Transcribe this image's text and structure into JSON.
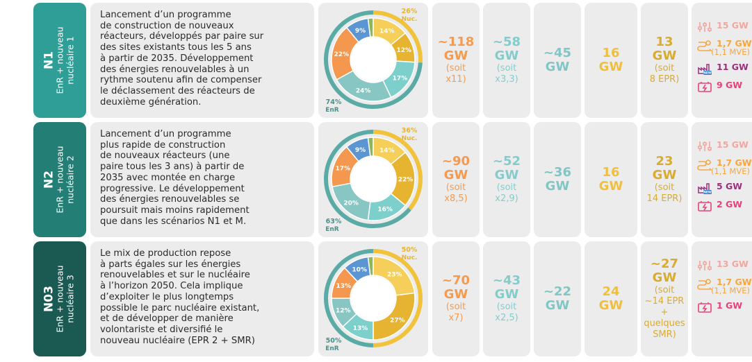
{
  "rows": [
    {
      "code": "N1",
      "sub1": "EnR + nouveau",
      "sub2": "nucléaire 1",
      "color": "#2e9e96",
      "desc": [
        "Lancement d’un programme",
        "de construction de nouveaux",
        "réacteurs, développés par paire sur",
        "des sites existants tous les 5 ans",
        "à partir de 2035. Développement",
        "des énergies renouvelables à un",
        "rythme soutenu afin de compenser",
        "le déclassement des réacteurs de",
        "deuxième génération."
      ],
      "nuc_pct": "26%",
      "nuc_word": "Nuc.",
      "enr_pct": "74%",
      "enr_word": "EnR",
      "col1": {
        "v1": "~118",
        "v2": "GW",
        "n1": "(soit",
        "n2": "x11)"
      },
      "col2": {
        "v1": "~58",
        "v2": "GW",
        "n1": "(soit",
        "n2": "x3,3)"
      },
      "col3": {
        "v1": "~45",
        "v2": "GW"
      },
      "col4": {
        "v1": "16",
        "v2": "GW"
      },
      "col5": {
        "v1": "13",
        "v2": "GW",
        "n1": "(soit",
        "n2": "8 EPR)"
      },
      "col6": [
        {
          "icon": "sliders-icon",
          "text": "15 GW",
          "note": "",
          "color": "#f2a6a0"
        },
        {
          "icon": "pump-storage-icon",
          "text": "1,7 GW",
          "note": "(1,1 MVE)",
          "color": "#f5a640"
        },
        {
          "icon": "factory-new-icon",
          "text": "11 GW",
          "note": "",
          "color": "#9c2f7c"
        },
        {
          "icon": "battery-icon",
          "text": "9 GW",
          "note": "",
          "color": "#e8407a"
        }
      ]
    },
    {
      "code": "N2",
      "sub1": "EnR + nouveau",
      "sub2": "nucléaire 2",
      "color": "#237e75",
      "desc": [
        "Lancement d’un programme",
        "plus rapide de construction",
        "de nouveaux réacteurs (une",
        "paire tous les 3 ans) à partir de",
        "2035 avec montée en charge",
        "progressive. Le développement",
        "des énergies renouvelables se",
        "poursuit mais moins rapidement",
        "que dans les scénarios N1 et M."
      ],
      "nuc_pct": "36%",
      "nuc_word": "Nuc.",
      "enr_pct": "63%",
      "enr_word": "EnR",
      "col1": {
        "v1": "~90",
        "v2": "GW",
        "n1": "(soit",
        "n2": "x8,5)"
      },
      "col2": {
        "v1": "~52",
        "v2": "GW",
        "n1": "(soit",
        "n2": "x2,9)"
      },
      "col3": {
        "v1": "~36",
        "v2": "GW"
      },
      "col4": {
        "v1": "16",
        "v2": "GW"
      },
      "col5": {
        "v1": "23",
        "v2": "GW",
        "n1": "(soit",
        "n2": "14 EPR)"
      },
      "col6": [
        {
          "icon": "sliders-icon",
          "text": "15 GW",
          "note": "",
          "color": "#f2a6a0"
        },
        {
          "icon": "pump-storage-icon",
          "text": "1,7 GW",
          "note": "(1,1 MVE)",
          "color": "#f5a640"
        },
        {
          "icon": "factory-new-icon",
          "text": "5 GW",
          "note": "",
          "color": "#9c2f7c"
        },
        {
          "icon": "battery-icon",
          "text": "2 GW",
          "note": "",
          "color": "#e8407a"
        }
      ]
    },
    {
      "code": "N03",
      "sub1": "EnR + nouveau",
      "sub2": "nucléaire 3",
      "color": "#1a5a52",
      "desc": [
        "Le mix de production repose",
        "à parts égales sur les énergies",
        "renouvelables et sur le nucléaire",
        "à l’horizon 2050. Cela implique",
        "d’exploiter le plus longtemps",
        "possible le parc nucléaire existant,",
        "et de développer de manière",
        "volontariste et diversifié le",
        "nouveau nucléaire (EPR 2 + SMR)"
      ],
      "nuc_pct": "50%",
      "nuc_word": "Nuc.",
      "enr_pct": "50%",
      "enr_word": "EnR",
      "col1": {
        "v1": "~70",
        "v2": "GW",
        "n1": "(soit",
        "n2": "x7)"
      },
      "col2": {
        "v1": "~43",
        "v2": "GW",
        "n1": "(soit",
        "n2": "x2,5)"
      },
      "col3": {
        "v1": "~22",
        "v2": "GW"
      },
      "col4": {
        "v1": "24",
        "v2": "GW"
      },
      "col5": {
        "v1": "~27",
        "v2": "GW",
        "n1": "(soit",
        "n2": "~14 EPR",
        "n3": "+",
        "n4": "quelques",
        "n5": "SMR)"
      },
      "col6": [
        {
          "icon": "sliders-icon",
          "text": "13 GW",
          "note": "",
          "color": "#f2a6a0"
        },
        {
          "icon": "pump-storage-icon",
          "text": "1,7 GW",
          "note": "(1,1 MVE)",
          "color": "#f5a640"
        },
        {
          "icon": "battery-icon",
          "text": "1 GW",
          "note": "",
          "color": "#e8407a"
        }
      ]
    }
  ],
  "chart_data": [
    {
      "type": "pie",
      "categories": [
        "nuc-a",
        "nuc-b",
        "enr-1",
        "enr-2",
        "enr-3",
        "enr-4",
        "enr-5"
      ],
      "values": [
        14,
        12,
        17,
        24,
        22,
        9,
        2
      ],
      "labels": [
        "14%",
        "12%",
        "17%",
        "24%",
        "22%",
        "9%",
        ""
      ],
      "colors": [
        "#f6cf5a",
        "#e6b431",
        "#7dcfcb",
        "#88c6c3",
        "#f4984f",
        "#5b96d2",
        "#8db85a"
      ]
    },
    {
      "type": "pie",
      "categories": [
        "nuc-a",
        "nuc-b",
        "enr-1",
        "enr-2",
        "enr-3",
        "enr-4",
        "enr-5"
      ],
      "values": [
        14,
        22,
        16,
        20,
        17,
        9,
        2
      ],
      "labels": [
        "14%",
        "22%",
        "16%",
        "20%",
        "17%",
        "9%",
        ""
      ],
      "colors": [
        "#f6cf5a",
        "#e6b431",
        "#7dcfcb",
        "#88c6c3",
        "#f4984f",
        "#5b96d2",
        "#8db85a"
      ]
    },
    {
      "type": "pie",
      "categories": [
        "nuc-a",
        "nuc-b",
        "enr-1",
        "enr-2",
        "enr-3",
        "enr-4",
        "enr-5"
      ],
      "values": [
        23,
        27,
        13,
        12,
        13,
        10,
        2
      ],
      "labels": [
        "23%",
        "27%",
        "13%",
        "12%",
        "13%",
        "10%",
        ""
      ],
      "colors": [
        "#f6cf5a",
        "#e6b431",
        "#7dcfcb",
        "#88c6c3",
        "#f4984f",
        "#5b96d2",
        "#8db85a"
      ]
    }
  ]
}
